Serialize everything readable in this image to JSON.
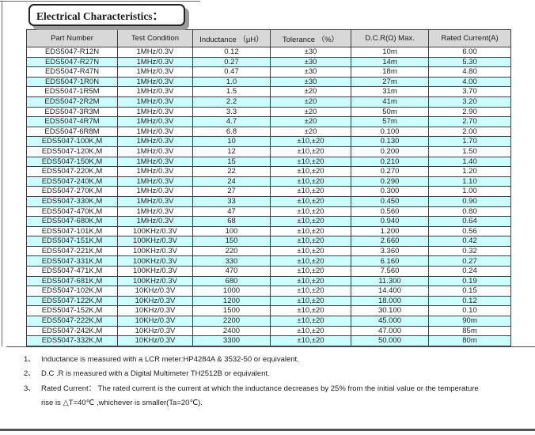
{
  "page": {
    "title": "Electrical Characteristics："
  },
  "colors": {
    "row_alternate": "#CCFFFF",
    "header_background": "#D8D8D8",
    "table_border": "#3D3D3D"
  },
  "table": {
    "columns": [
      "Part Number",
      "Test Condition",
      "Inductance （μH）",
      "Tolerance （%）",
      "D.C.R(Ω) Max.",
      "Rated Current(A)"
    ],
    "rows": [
      [
        "EDS5047-R12N",
        "1MHz/0.3V",
        "0.12",
        "±30",
        "10m",
        "6.00"
      ],
      [
        "EDS5047-R27N",
        "1MHz/0.3V",
        "0.27",
        "±30",
        "14m",
        "5.30"
      ],
      [
        "EDS5047-R47N",
        "1MHz/0.3V",
        "0.47",
        "±30",
        "18m",
        "4.80"
      ],
      [
        "EDS5047-1R0N",
        "1MHz/0.3V",
        "1.0",
        "±30",
        "27m",
        "4.00"
      ],
      [
        "EDS5047-1R5M",
        "1MHz/0.3V",
        "1.5",
        "±20",
        "31m",
        "3.70"
      ],
      [
        "EDS5047-2R2M",
        "1MHz/0.3V",
        "2.2",
        "±20",
        "41m",
        "3.20"
      ],
      [
        "EDS5047-3R3M",
        "1MHz/0.3V",
        "3.3",
        "±20",
        "50m",
        "2.90"
      ],
      [
        "EDS5047-4R7M",
        "1MHz/0.3V",
        "4.7",
        "±20",
        "57m",
        "2.70"
      ],
      [
        "EDS5047-6R8M",
        "1MHz/0.3V",
        "6.8",
        "±20",
        "0.100",
        "2.00"
      ],
      [
        "EDS5047-100K,M",
        "1MHz/0.3V",
        "10",
        "±10,±20",
        "0.130",
        "1.70"
      ],
      [
        "EDS5047-120K,M",
        "1MHz/0.3V",
        "12",
        "±10,±20",
        "0.200",
        "1.50"
      ],
      [
        "EDS5047-150K,M",
        "1MHz/0.3V",
        "15",
        "±10,±20",
        "0.210",
        "1.40"
      ],
      [
        "EDS5047-220K,M",
        "1MHz/0.3V",
        "22",
        "±10,±20",
        "0.270",
        "1.20"
      ],
      [
        "EDS5047-240K,M",
        "1MHz/0.3V",
        "24",
        "±10,±20",
        "0.290",
        "1.10"
      ],
      [
        "EDS5047-270K,M",
        "1MHz/0.3V",
        "27",
        "±10,±20",
        "0.300",
        "1.00"
      ],
      [
        "EDS5047-330K,M",
        "1MHz/0.3V",
        "33",
        "±10,±20",
        "0.450",
        "0.90"
      ],
      [
        "EDS5047-470K,M",
        "1MHz/0.3V",
        "47",
        "±10,±20",
        "0.560",
        "0.80"
      ],
      [
        "EDS5047-680K,M",
        "1MHz/0.3V",
        "68",
        "±10,±20",
        "0.940",
        "0.64"
      ],
      [
        "EDS5047-101K,M",
        "100KHz/0.3V",
        "100",
        "±10,±20",
        "1.200",
        "0.56"
      ],
      [
        "EDS5047-151K,M",
        "100KHz/0.3V",
        "150",
        "±10,±20",
        "2.660",
        "0.42"
      ],
      [
        "EDS5047-221K,M",
        "100KHz/0.3V",
        "220",
        "±10,±20",
        "3.360",
        "0.32"
      ],
      [
        "EDS5047-331K,M",
        "100KHz/0.3V",
        "330",
        "±10,±20",
        "6.160",
        "0.27"
      ],
      [
        "EDS5047-471K,M",
        "100KHz/0.3V",
        "470",
        "±10,±20",
        "7.560",
        "0.24"
      ],
      [
        "EDS5047-681K,M",
        "100KHz/0.3V",
        "680",
        "±10,±20",
        "11.300",
        "0.19"
      ],
      [
        "EDS5047-102K,M",
        "10KHz/0.3V",
        "1000",
        "±10,±20",
        "14.400",
        "0.15"
      ],
      [
        "EDS5047-122K,M",
        "10KHz/0.3V",
        "1200",
        "±10,±20",
        "18.000",
        "0.12"
      ],
      [
        "EDS5047-152K,M",
        "10KHz/0.3V",
        "1500",
        "±10,±20",
        "30.100",
        "0.10"
      ],
      [
        "EDS5047-222K,M",
        "10KHz/0.3V",
        "2200",
        "±10,±20",
        "45.000",
        "90m"
      ],
      [
        "EDS5047-242K,M",
        "10KHz/0.3V",
        "2400",
        "±10,±20",
        "47.000",
        "85m"
      ],
      [
        "EDS5047-332K,M",
        "10KHz/0.3V",
        "3300",
        "±10,±20",
        "50.000",
        "80m"
      ]
    ]
  },
  "footnotes": [
    {
      "marker": "1、",
      "text": "Inductance is measured with a LCR meter:HP4284A & 3532-50 or equivalent.",
      "indent": false
    },
    {
      "marker": "2、",
      "text": "D.C .R is measured with a Digital Multimeter TH2512B or equivalent.",
      "indent": false
    },
    {
      "marker": "3、",
      "text": "Rated Current： The rated current is the current at which the inductance decreases by 25% from the initial value or the temperature",
      "indent": false
    },
    {
      "marker": "",
      "text": "rise is △T=40℃ ,whichever is smaller(Ta=20℃).",
      "indent": true
    }
  ]
}
